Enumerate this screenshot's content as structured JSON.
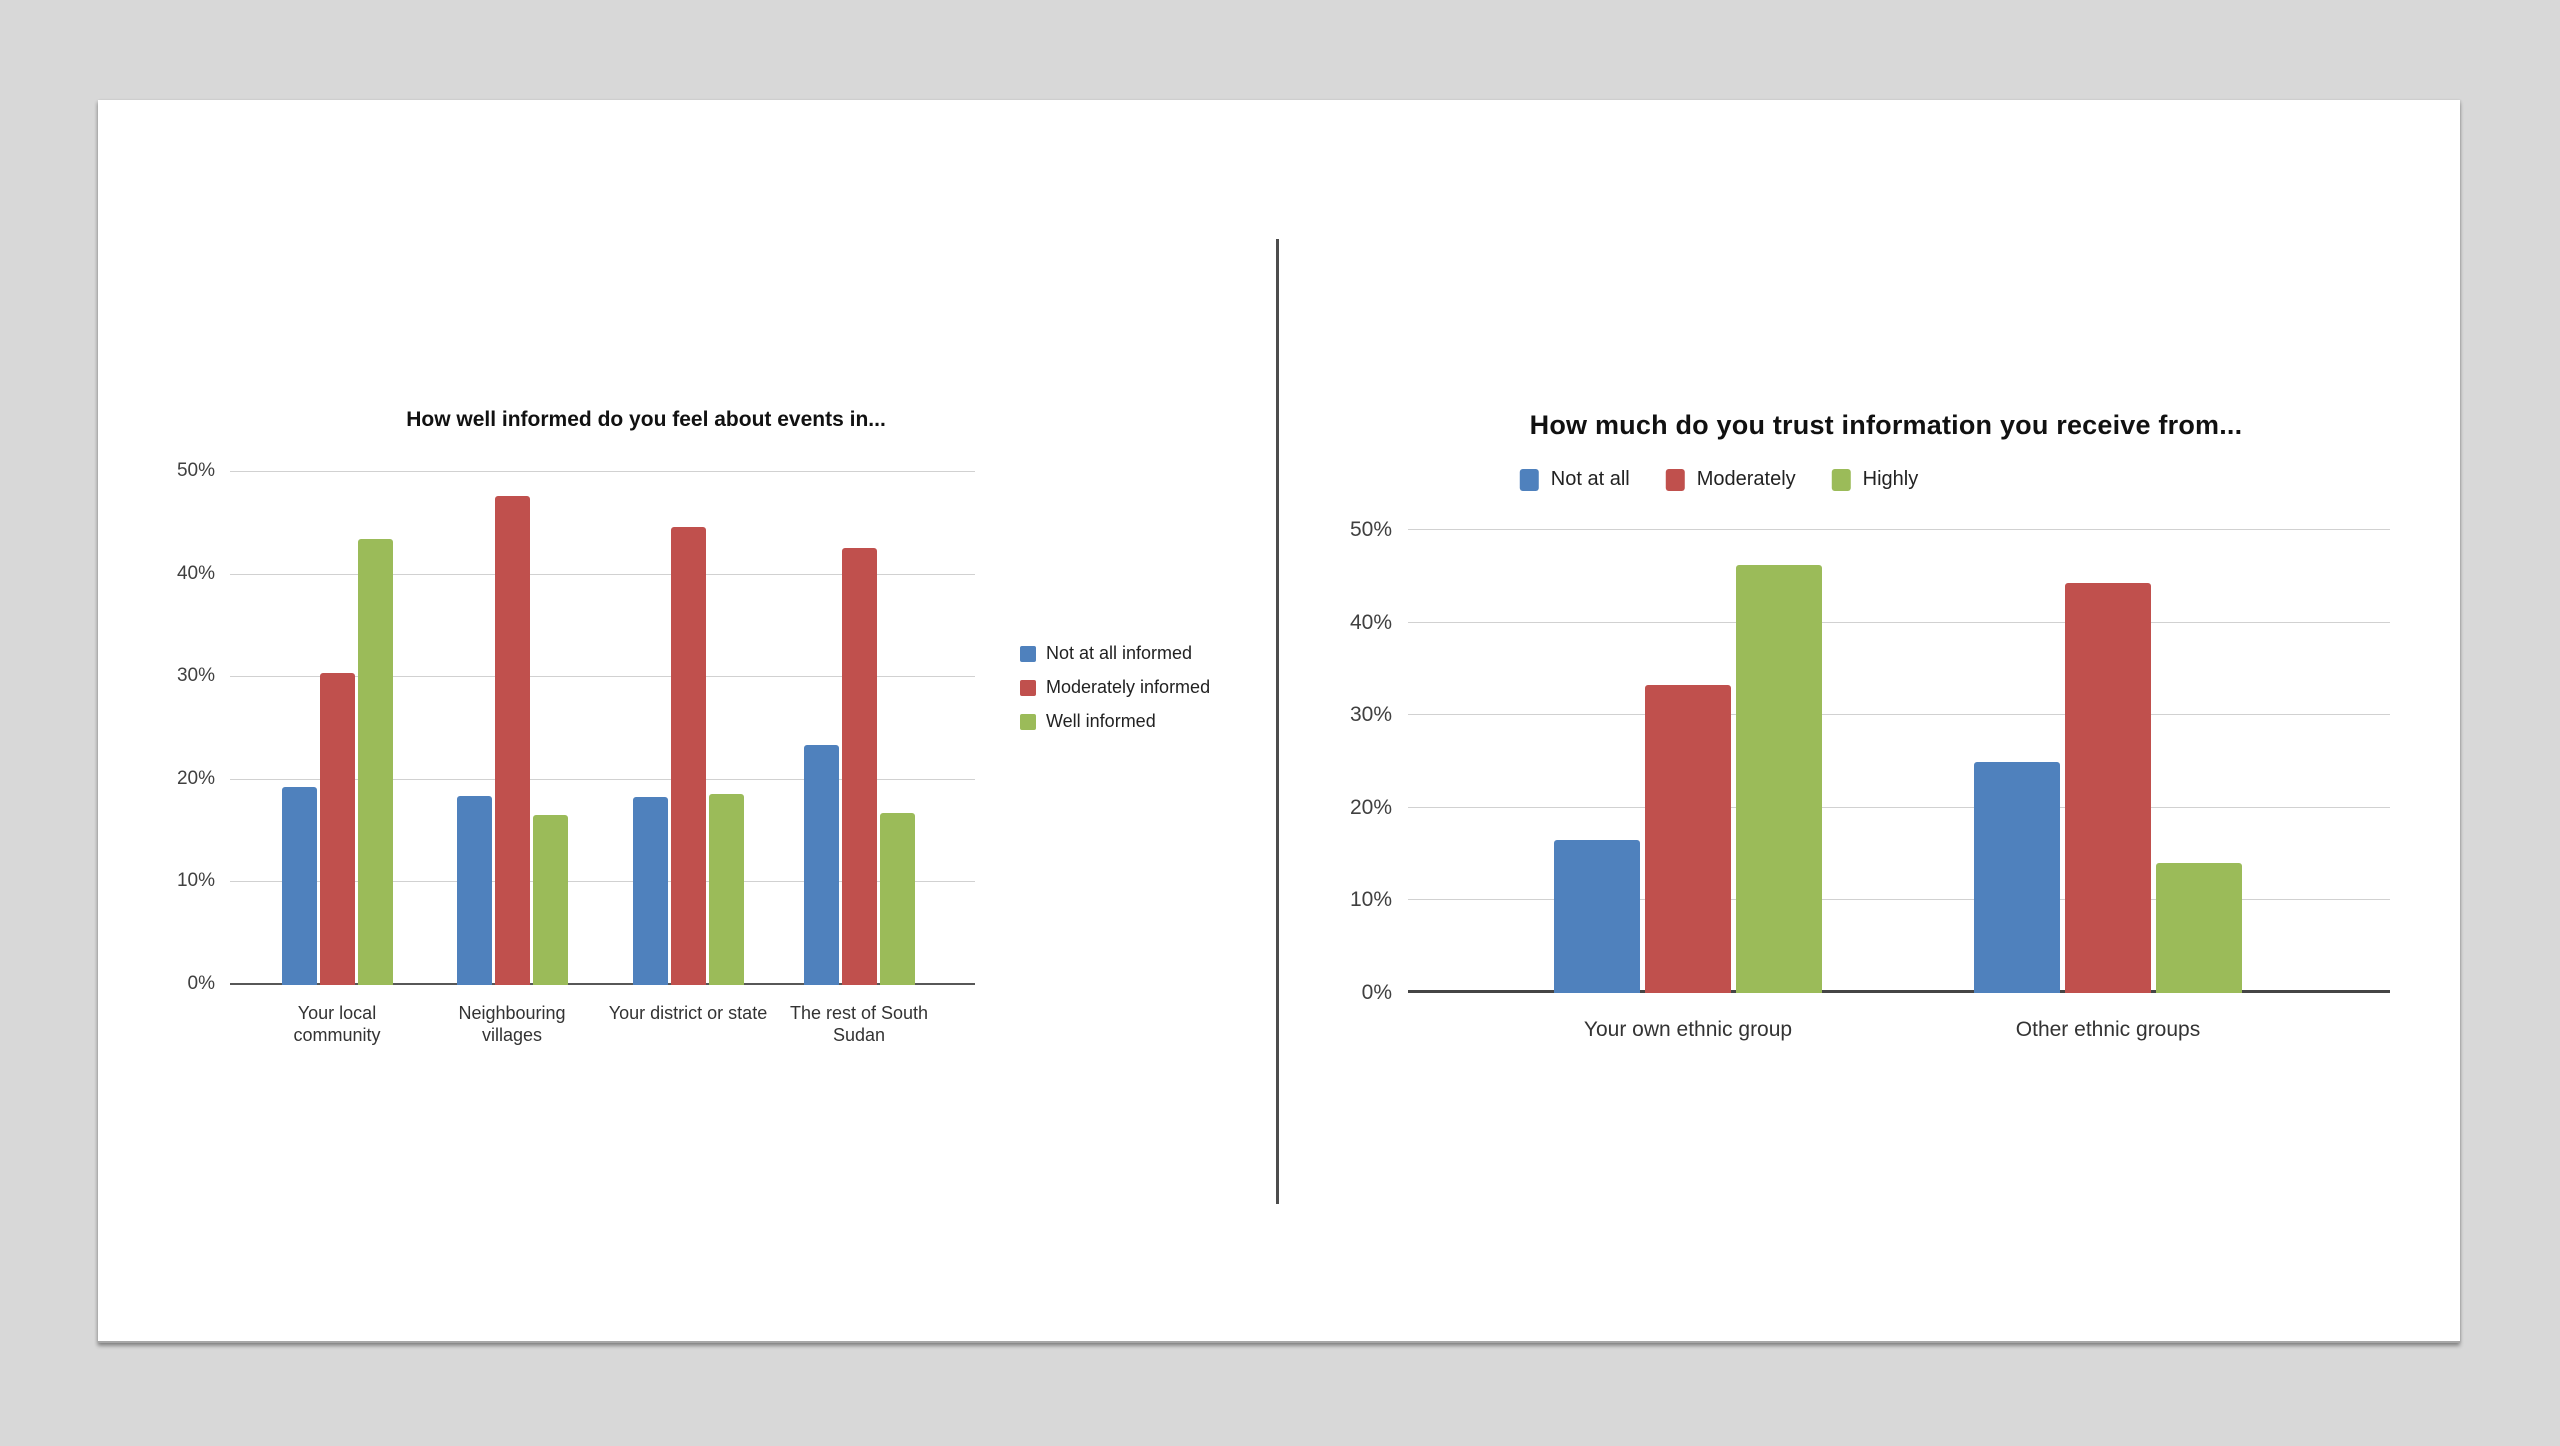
{
  "page": {
    "background_color": "#d8d8d8",
    "canvas_color": "#ffffff",
    "divider_color": "#4d4d4d"
  },
  "colors": {
    "series_blue": "#4f81bd",
    "series_red": "#c0504d",
    "series_green": "#9bbb59",
    "gridline": "#d1d1d1",
    "axis_line": "#4a4a4a",
    "text": "#333333"
  },
  "chart_data": [
    {
      "type": "bar",
      "title": "How well informed do you feel about events in...",
      "categories": [
        "Your local community",
        "Neighbouring villages",
        "Your district or state",
        "The rest of South Sudan"
      ],
      "categories_wrapped": [
        "Your local\ncommunity",
        "Neighbouring\nvillages",
        "Your district or state",
        "The rest of South\nSudan"
      ],
      "series": [
        {
          "name": "Not at all informed",
          "color": "#4f81bd",
          "values": [
            19.3,
            18.4,
            18.3,
            23.4
          ]
        },
        {
          "name": "Moderately informed",
          "color": "#c0504d",
          "values": [
            30.4,
            47.7,
            44.6,
            42.6
          ]
        },
        {
          "name": "Well informed",
          "color": "#9bbb59",
          "values": [
            43.5,
            16.6,
            18.6,
            16.8
          ]
        }
      ],
      "xlabel": "",
      "ylabel": "",
      "ylim": [
        0,
        50
      ],
      "yticks": [
        "0%",
        "10%",
        "20%",
        "30%",
        "40%",
        "50%"
      ],
      "grid": true,
      "legend_position": "right"
    },
    {
      "type": "bar",
      "title": "How much do you trust information you receive from...",
      "categories": [
        "Your own ethnic group",
        "Other ethnic groups"
      ],
      "categories_wrapped": [
        "Your own ethnic group",
        "Other ethnic groups"
      ],
      "series": [
        {
          "name": "Not at all",
          "color": "#4f81bd",
          "values": [
            16.5,
            24.9
          ]
        },
        {
          "name": "Moderately",
          "color": "#c0504d",
          "values": [
            33.3,
            44.3
          ]
        },
        {
          "name": "Highly",
          "color": "#9bbb59",
          "values": [
            46.2,
            14.0
          ]
        }
      ],
      "xlabel": "",
      "ylabel": "",
      "ylim": [
        0,
        50
      ],
      "yticks": [
        "0%",
        "10%",
        "20%",
        "30%",
        "40%",
        "50%"
      ],
      "grid": true,
      "legend_position": "top"
    }
  ]
}
